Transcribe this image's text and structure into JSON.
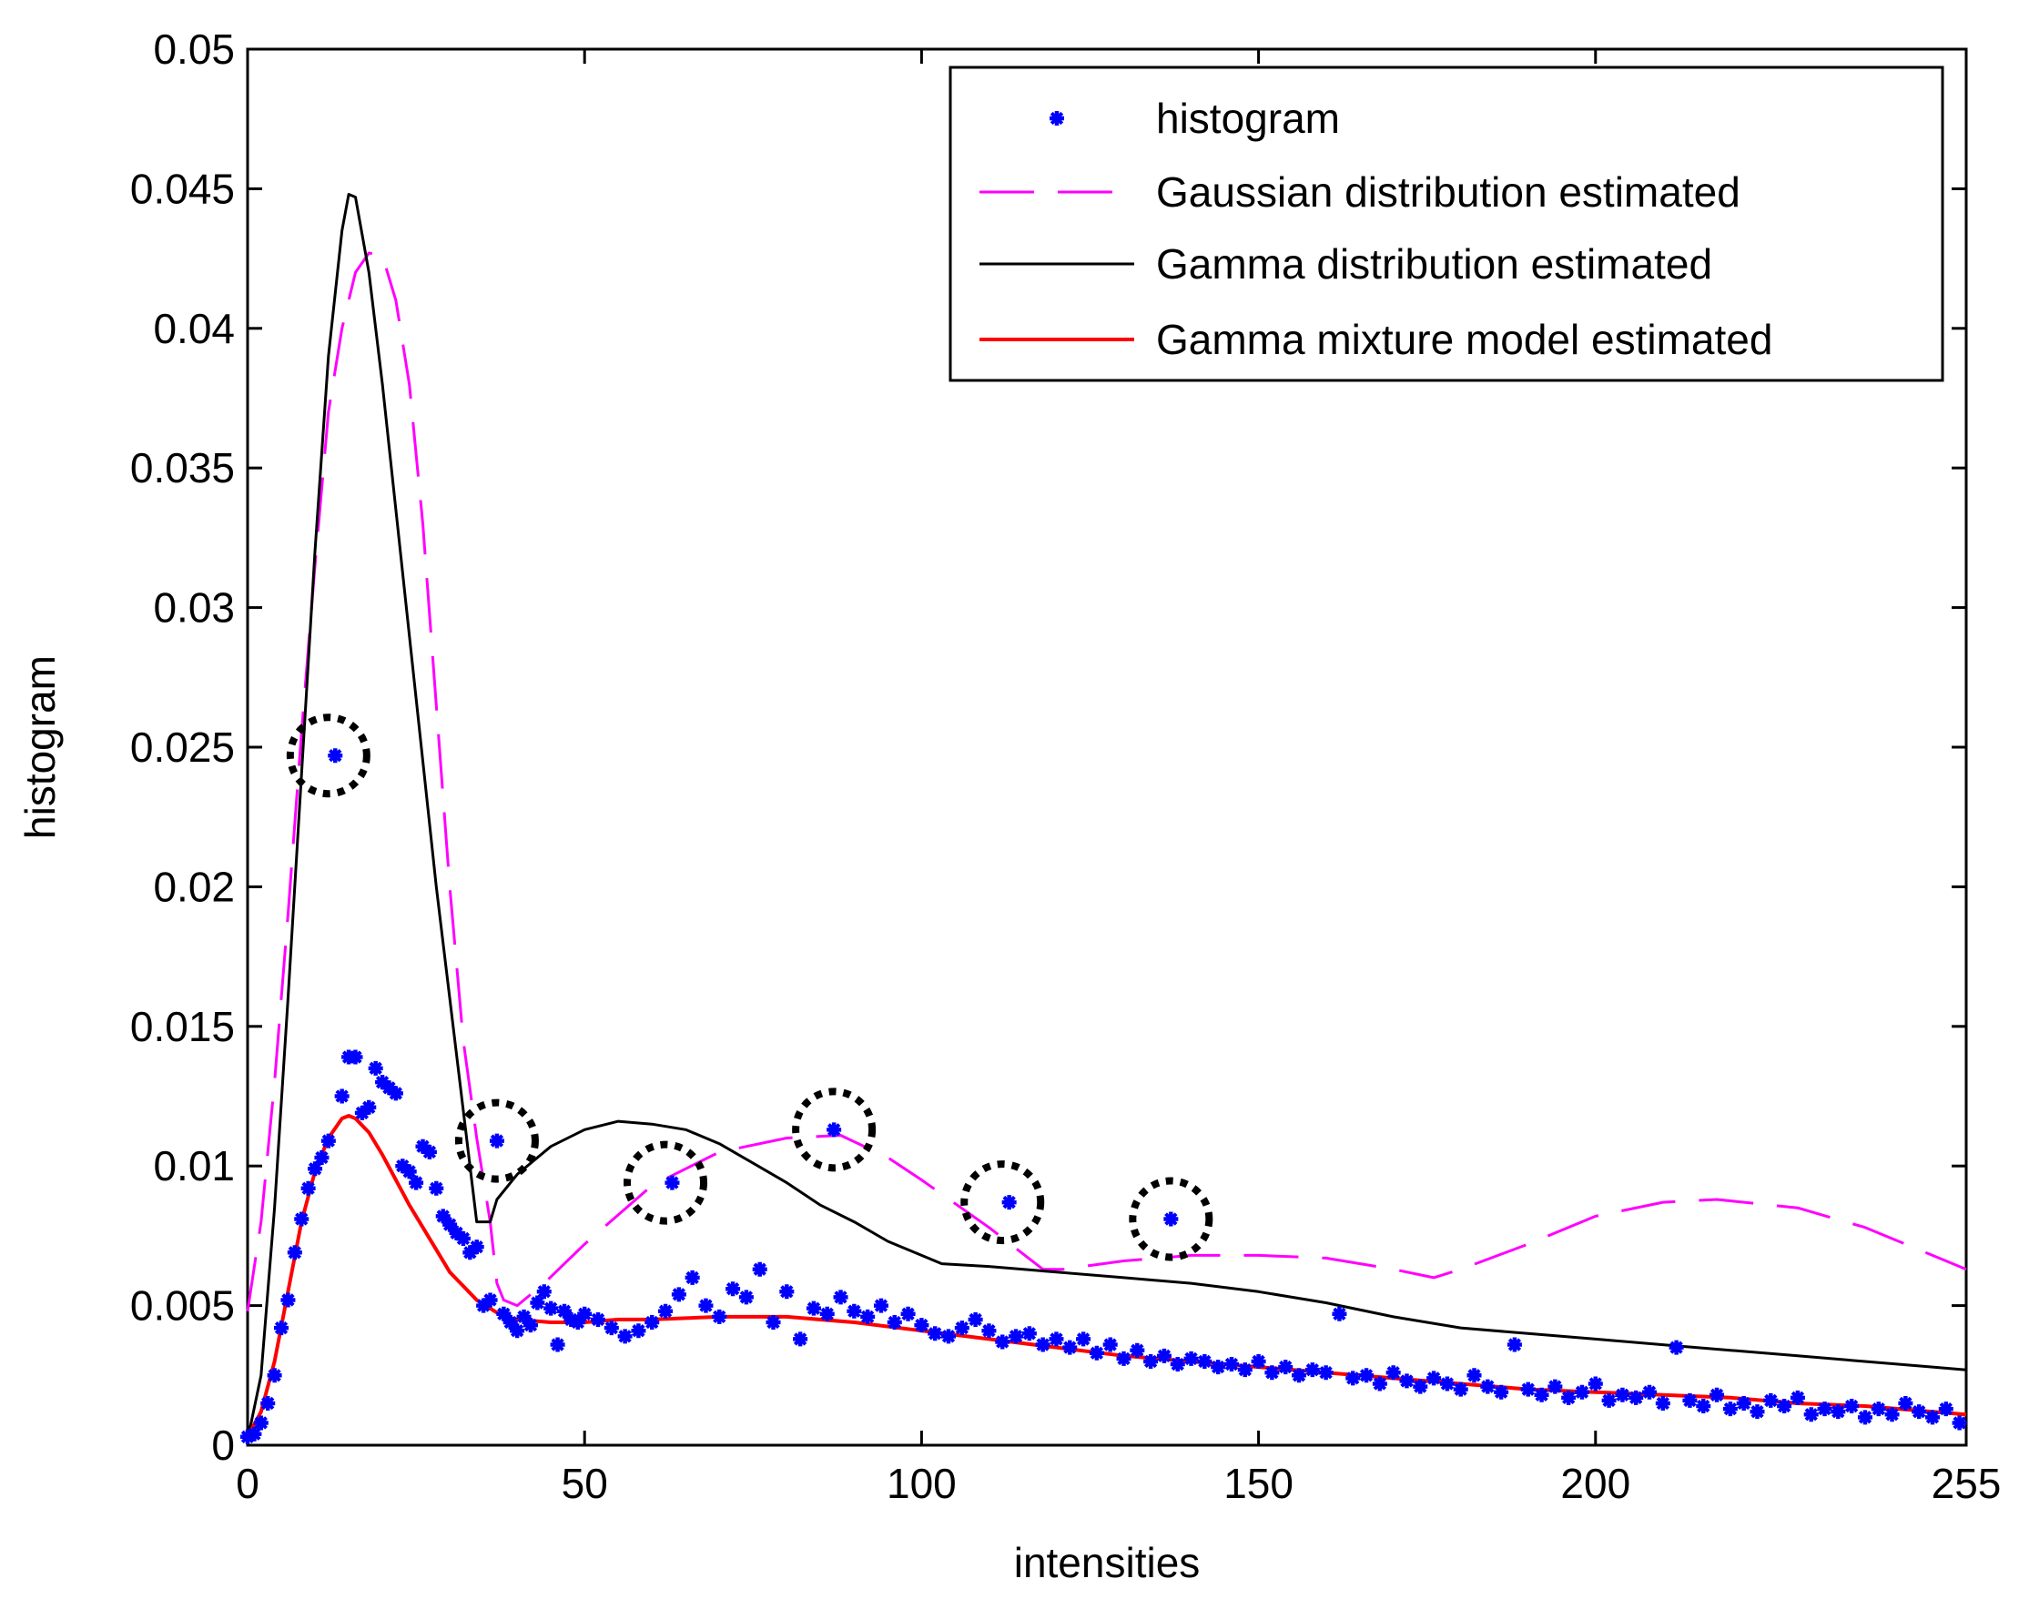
{
  "chart_data": {
    "type": "line",
    "title": "",
    "xlabel": "intensities",
    "ylabel": "histogram",
    "xlim": [
      0,
      255
    ],
    "ylim": [
      0,
      0.05
    ],
    "xticks": [
      0,
      50,
      100,
      150,
      200,
      255
    ],
    "xtick_labels": [
      "0",
      "50",
      "100",
      "150",
      "200",
      "255"
    ],
    "yticks": [
      0,
      0.005,
      0.01,
      0.015,
      0.02,
      0.025,
      0.03,
      0.035,
      0.04,
      0.045,
      0.05
    ],
    "ytick_labels": [
      "0",
      "0.005",
      "0.01",
      "0.015",
      "0.02",
      "0.025",
      "0.03",
      "0.035",
      "0.04",
      "0.045",
      "0.05"
    ],
    "grid": false,
    "legend_position": "top-right",
    "colors": {
      "histogram": "#0000ff",
      "gaussian": "#ff00ff",
      "gamma": "#000000",
      "mixture": "#ff0000",
      "circle": "#000000"
    },
    "legend": [
      {
        "label": "histogram",
        "series": "histogram"
      },
      {
        "label": "Gaussian distribution estimated",
        "series": "gaussian"
      },
      {
        "label": "Gamma distribution estimated",
        "series": "gamma"
      },
      {
        "label": "Gamma mixture model estimated",
        "series": "mixture"
      }
    ],
    "series": [
      {
        "key": "histogram",
        "name": "histogram",
        "style": "markers",
        "x": [
          0,
          1,
          2,
          3,
          4,
          5,
          6,
          7,
          8,
          9,
          10,
          11,
          12,
          13,
          14,
          15,
          16,
          17,
          18,
          19,
          20,
          21,
          22,
          23,
          24,
          25,
          26,
          27,
          28,
          29,
          30,
          31,
          32,
          33,
          34,
          35,
          36,
          37,
          38,
          39,
          40,
          41,
          42,
          43,
          44,
          45,
          46,
          47,
          48,
          49,
          50,
          52,
          54,
          56,
          58,
          60,
          62,
          63,
          64,
          66,
          68,
          70,
          72,
          74,
          76,
          78,
          80,
          82,
          84,
          86,
          87,
          88,
          90,
          92,
          94,
          96,
          98,
          100,
          102,
          104,
          106,
          108,
          110,
          112,
          113,
          114,
          116,
          118,
          120,
          122,
          124,
          126,
          128,
          130,
          132,
          134,
          136,
          137,
          138,
          140,
          142,
          144,
          146,
          148,
          150,
          152,
          154,
          156,
          158,
          160,
          162,
          164,
          166,
          168,
          170,
          172,
          174,
          176,
          178,
          180,
          182,
          184,
          186,
          188,
          190,
          192,
          194,
          196,
          198,
          200,
          202,
          204,
          206,
          208,
          210,
          212,
          214,
          216,
          218,
          220,
          222,
          224,
          226,
          228,
          230,
          232,
          234,
          236,
          238,
          240,
          242,
          244,
          246,
          248,
          250,
          252,
          254
        ],
        "values": [
          0.0003,
          0.0004,
          0.0008,
          0.0015,
          0.0025,
          0.0042,
          0.0052,
          0.0069,
          0.0081,
          0.0092,
          0.0099,
          0.0103,
          0.0109,
          0.0247,
          0.0125,
          0.0139,
          0.0139,
          0.0119,
          0.0121,
          0.0135,
          0.013,
          0.0128,
          0.0126,
          0.01,
          0.0098,
          0.0094,
          0.0107,
          0.0105,
          0.0092,
          0.0082,
          0.0079,
          0.0076,
          0.0074,
          0.0069,
          0.0071,
          0.005,
          0.0052,
          0.0109,
          0.0047,
          0.0044,
          0.0041,
          0.0046,
          0.0043,
          0.0051,
          0.0055,
          0.0049,
          0.0036,
          0.0048,
          0.0045,
          0.0044,
          0.0047,
          0.0045,
          0.0042,
          0.0039,
          0.0041,
          0.0044,
          0.0048,
          0.0094,
          0.0054,
          0.006,
          0.005,
          0.0046,
          0.0056,
          0.0053,
          0.0063,
          0.0044,
          0.0055,
          0.0038,
          0.0049,
          0.0047,
          0.0113,
          0.0053,
          0.0048,
          0.0046,
          0.005,
          0.0044,
          0.0047,
          0.0043,
          0.004,
          0.0039,
          0.0042,
          0.0045,
          0.0041,
          0.0037,
          0.0087,
          0.0039,
          0.004,
          0.0036,
          0.0038,
          0.0035,
          0.0038,
          0.0033,
          0.0036,
          0.0031,
          0.0034,
          0.003,
          0.0032,
          0.0081,
          0.0029,
          0.0031,
          0.003,
          0.0028,
          0.0029,
          0.0027,
          0.003,
          0.0026,
          0.0028,
          0.0025,
          0.0027,
          0.0026,
          0.0047,
          0.0024,
          0.0025,
          0.0022,
          0.0026,
          0.0023,
          0.0021,
          0.0024,
          0.0022,
          0.002,
          0.0025,
          0.0021,
          0.0019,
          0.0036,
          0.002,
          0.0018,
          0.0021,
          0.0017,
          0.0019,
          0.0022,
          0.0016,
          0.0018,
          0.0017,
          0.0019,
          0.0015,
          0.0035,
          0.0016,
          0.0014,
          0.0018,
          0.0013,
          0.0015,
          0.0012,
          0.0016,
          0.0014,
          0.0017,
          0.0011,
          0.0013,
          0.0012,
          0.0014,
          0.001,
          0.0013,
          0.0011,
          0.0015,
          0.0012,
          0.001,
          0.0013,
          0.0008
        ]
      },
      {
        "key": "gaussian",
        "name": "Gaussian distribution estimated",
        "style": "dashed",
        "x": [
          0,
          2,
          4,
          6,
          8,
          10,
          12,
          14,
          16,
          18,
          20,
          22,
          24,
          26,
          28,
          30,
          32,
          34,
          36,
          37,
          38,
          40,
          44,
          50,
          60,
          70,
          80,
          88,
          95,
          100,
          110,
          118,
          121,
          124,
          130,
          140,
          150,
          160,
          170,
          176,
          180,
          190,
          200,
          210,
          218,
          230,
          240,
          250,
          255
        ],
        "values": [
          0.0048,
          0.008,
          0.013,
          0.019,
          0.0255,
          0.0315,
          0.037,
          0.04,
          0.042,
          0.0427,
          0.0426,
          0.041,
          0.038,
          0.033,
          0.0265,
          0.02,
          0.0145,
          0.011,
          0.008,
          0.0058,
          0.0052,
          0.005,
          0.0058,
          0.0072,
          0.0093,
          0.0105,
          0.011,
          0.0111,
          0.0103,
          0.0095,
          0.0078,
          0.0063,
          0.0063,
          0.0064,
          0.0066,
          0.0068,
          0.0068,
          0.0067,
          0.0063,
          0.006,
          0.0063,
          0.0072,
          0.0082,
          0.0087,
          0.0088,
          0.0085,
          0.0078,
          0.0068,
          0.0063
        ]
      },
      {
        "key": "gamma",
        "name": "Gamma distribution estimated",
        "style": "solid",
        "x": [
          0,
          2,
          4,
          6,
          8,
          10,
          12,
          14,
          15,
          16,
          18,
          20,
          22,
          24,
          26,
          28,
          30,
          32,
          34,
          36,
          37,
          40,
          45,
          50,
          55,
          60,
          65,
          70,
          75,
          80,
          85,
          90,
          95,
          100,
          103,
          110,
          120,
          130,
          140,
          150,
          160,
          170,
          180,
          190,
          200,
          210,
          220,
          230,
          240,
          250,
          255
        ],
        "values": [
          0.0002,
          0.0025,
          0.0085,
          0.016,
          0.024,
          0.032,
          0.039,
          0.0435,
          0.0448,
          0.0447,
          0.042,
          0.038,
          0.0335,
          0.029,
          0.0245,
          0.02,
          0.016,
          0.012,
          0.008,
          0.008,
          0.0088,
          0.0097,
          0.0107,
          0.0113,
          0.0116,
          0.0115,
          0.0113,
          0.0108,
          0.0101,
          0.0094,
          0.0086,
          0.008,
          0.0073,
          0.0068,
          0.0065,
          0.0064,
          0.0062,
          0.006,
          0.0058,
          0.0055,
          0.0051,
          0.0046,
          0.0042,
          0.004,
          0.0038,
          0.0036,
          0.0034,
          0.0032,
          0.003,
          0.0028,
          0.0027
        ]
      },
      {
        "key": "mixture",
        "name": "Gamma mixture model estimated",
        "style": "solid",
        "x": [
          0,
          2,
          4,
          6,
          8,
          10,
          12,
          14,
          15,
          16,
          18,
          20,
          22,
          24,
          26,
          28,
          30,
          32,
          34,
          36,
          38,
          40,
          45,
          50,
          55,
          60,
          70,
          80,
          90,
          100,
          110,
          120,
          130,
          140,
          150,
          160,
          170,
          180,
          190,
          200,
          210,
          220,
          230,
          240,
          250,
          255
        ],
        "values": [
          0.0003,
          0.0012,
          0.003,
          0.0055,
          0.008,
          0.0098,
          0.011,
          0.0117,
          0.0118,
          0.0117,
          0.0112,
          0.0104,
          0.0095,
          0.0086,
          0.0078,
          0.007,
          0.0062,
          0.0057,
          0.0052,
          0.0049,
          0.0046,
          0.0045,
          0.0044,
          0.0044,
          0.0045,
          0.0045,
          0.0046,
          0.0046,
          0.0044,
          0.0041,
          0.0038,
          0.0035,
          0.0032,
          0.003,
          0.0028,
          0.0026,
          0.0024,
          0.0022,
          0.002,
          0.0019,
          0.0018,
          0.0017,
          0.0015,
          0.0014,
          0.0012,
          0.0011
        ]
      }
    ],
    "annotations": {
      "type": "dotted-circles",
      "points": [
        {
          "x": 12,
          "y": 0.0247
        },
        {
          "x": 37,
          "y": 0.0109
        },
        {
          "x": 62,
          "y": 0.0094
        },
        {
          "x": 87,
          "y": 0.0113
        },
        {
          "x": 112,
          "y": 0.0087
        },
        {
          "x": 137,
          "y": 0.0081
        }
      ]
    }
  }
}
